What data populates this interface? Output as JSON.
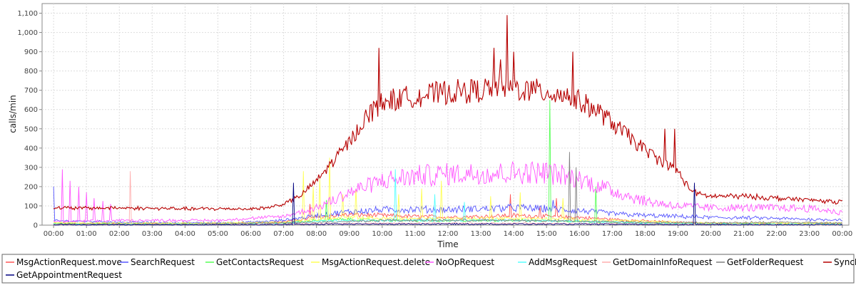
{
  "chart_data": {
    "type": "line",
    "title": "",
    "xlabel": "Time",
    "ylabel": "calls/min",
    "ylim": [
      0,
      1150
    ],
    "xlim_hours": [
      -0.35,
      24.2
    ],
    "grid": true,
    "legend_position": "bottom",
    "y_ticks": [
      "0",
      "100",
      "200",
      "300",
      "400",
      "500",
      "600",
      "700",
      "800",
      "900",
      "1,000",
      "1,100"
    ],
    "x_ticks": [
      "00:00",
      "01:00",
      "02:00",
      "03:00",
      "04:00",
      "05:00",
      "06:00",
      "07:00",
      "08:00",
      "09:00",
      "10:00",
      "11:00",
      "12:00",
      "13:00",
      "14:00",
      "15:00",
      "16:00",
      "17:00",
      "18:00",
      "19:00",
      "20:00",
      "21:00",
      "22:00",
      "23:00",
      "00:00"
    ],
    "series": [
      {
        "name": "MsgActionRequest.move",
        "color": "#ff5555",
        "points": [
          [
            0,
            10
          ],
          [
            2,
            8
          ],
          [
            4,
            8
          ],
          [
            6,
            10
          ],
          [
            7,
            18
          ],
          [
            8,
            40
          ],
          [
            9,
            55
          ],
          [
            10,
            50
          ],
          [
            11,
            45
          ],
          [
            12,
            42
          ],
          [
            13,
            45
          ],
          [
            14,
            50
          ],
          [
            15,
            45
          ],
          [
            16,
            40
          ],
          [
            17,
            30
          ],
          [
            18,
            22
          ],
          [
            19,
            15
          ],
          [
            20,
            10
          ],
          [
            22,
            8
          ],
          [
            24,
            8
          ]
        ],
        "spikes": [
          [
            7.8,
            110
          ],
          [
            13.9,
            160
          ],
          [
            14.8,
            100
          ],
          [
            15.3,
            140
          ]
        ]
      },
      {
        "name": "SearchRequest",
        "color": "#5555ff",
        "points": [
          [
            0,
            22
          ],
          [
            1,
            20
          ],
          [
            2,
            15
          ],
          [
            4,
            12
          ],
          [
            6,
            15
          ],
          [
            7,
            25
          ],
          [
            8,
            50
          ],
          [
            9,
            70
          ],
          [
            10,
            80
          ],
          [
            11,
            82
          ],
          [
            12,
            80
          ],
          [
            13,
            85
          ],
          [
            14,
            90
          ],
          [
            15,
            85
          ],
          [
            16,
            75
          ],
          [
            17,
            60
          ],
          [
            18,
            50
          ],
          [
            19,
            45
          ],
          [
            20,
            40
          ],
          [
            21,
            38
          ],
          [
            22,
            35
          ],
          [
            23,
            30
          ],
          [
            24,
            28
          ]
        ],
        "spikes": [
          [
            0,
            200
          ],
          [
            14.1,
            100
          ],
          [
            15.2,
            130
          ]
        ]
      },
      {
        "name": "GetContactsRequest",
        "color": "#55ff55",
        "points": [
          [
            0,
            8
          ],
          [
            4,
            6
          ],
          [
            7,
            10
          ],
          [
            8,
            25
          ],
          [
            9,
            30
          ],
          [
            10,
            25
          ],
          [
            12,
            22
          ],
          [
            14,
            25
          ],
          [
            16,
            20
          ],
          [
            18,
            12
          ],
          [
            20,
            8
          ],
          [
            24,
            6
          ]
        ],
        "spikes": [
          [
            8.3,
            130
          ],
          [
            15.1,
            650
          ],
          [
            16.5,
            200
          ]
        ]
      },
      {
        "name": "MsgActionRequest.delete",
        "color": "#ffff55",
        "points": [
          [
            0,
            12
          ],
          [
            4,
            10
          ],
          [
            7,
            15
          ],
          [
            8,
            30
          ],
          [
            9,
            40
          ],
          [
            10,
            35
          ],
          [
            12,
            35
          ],
          [
            14,
            35
          ],
          [
            16,
            30
          ],
          [
            18,
            20
          ],
          [
            20,
            12
          ],
          [
            24,
            10
          ]
        ],
        "spikes": [
          [
            7.6,
            280
          ],
          [
            7.9,
            200
          ],
          [
            8.1,
            240
          ],
          [
            8.4,
            350
          ],
          [
            8.8,
            160
          ],
          [
            9.2,
            190
          ],
          [
            10.5,
            160
          ],
          [
            11.2,
            190
          ],
          [
            11.8,
            230
          ],
          [
            13.3,
            150
          ],
          [
            14.2,
            170
          ],
          [
            15.5,
            140
          ]
        ]
      },
      {
        "name": "NoOpRequest",
        "color": "#ff55ff",
        "points": [
          [
            0,
            20
          ],
          [
            1,
            20
          ],
          [
            2,
            25
          ],
          [
            3,
            25
          ],
          [
            4,
            25
          ],
          [
            5,
            25
          ],
          [
            6,
            35
          ],
          [
            7,
            45
          ],
          [
            8,
            90
          ],
          [
            9,
            170
          ],
          [
            10,
            230
          ],
          [
            11,
            255
          ],
          [
            12,
            265
          ],
          [
            13,
            270
          ],
          [
            14,
            272
          ],
          [
            15,
            275
          ],
          [
            16,
            240
          ],
          [
            17,
            180
          ],
          [
            18,
            125
          ],
          [
            19,
            100
          ],
          [
            20,
            90
          ],
          [
            21,
            90
          ],
          [
            22,
            90
          ],
          [
            23,
            88
          ],
          [
            24,
            65
          ]
        ],
        "spikes": [
          [
            0.25,
            290
          ],
          [
            0.5,
            230
          ],
          [
            0.75,
            200
          ],
          [
            1.0,
            170
          ],
          [
            1.25,
            140
          ],
          [
            1.5,
            125
          ],
          [
            1.75,
            110
          ]
        ]
      },
      {
        "name": "AddMsgRequest",
        "color": "#55ffff",
        "points": [
          [
            0,
            5
          ],
          [
            4,
            5
          ],
          [
            7,
            8
          ],
          [
            8,
            20
          ],
          [
            10,
            25
          ],
          [
            12,
            25
          ],
          [
            14,
            25
          ],
          [
            16,
            20
          ],
          [
            18,
            10
          ],
          [
            20,
            6
          ],
          [
            24,
            5
          ]
        ],
        "spikes": [
          [
            10.4,
            290
          ],
          [
            11.6,
            160
          ],
          [
            12.5,
            120
          ]
        ]
      },
      {
        "name": "GetDomainInfoRequest",
        "color": "#ffafaf",
        "points": [
          [
            0,
            3
          ],
          [
            4,
            3
          ],
          [
            8,
            8
          ],
          [
            12,
            10
          ],
          [
            16,
            8
          ],
          [
            20,
            4
          ],
          [
            24,
            3
          ]
        ],
        "spikes": [
          [
            2.35,
            280
          ]
        ]
      },
      {
        "name": "GetFolderRequest",
        "color": "#808080",
        "points": [
          [
            0,
            5
          ],
          [
            4,
            4
          ],
          [
            8,
            15
          ],
          [
            10,
            25
          ],
          [
            12,
            25
          ],
          [
            14,
            25
          ],
          [
            16,
            20
          ],
          [
            18,
            15
          ],
          [
            20,
            12
          ],
          [
            22,
            15
          ],
          [
            24,
            12
          ]
        ],
        "spikes": [
          [
            15.7,
            380
          ],
          [
            15.9,
            300
          ]
        ]
      },
      {
        "name": "SyncRequest",
        "color": "#b60000",
        "points": [
          [
            0,
            90
          ],
          [
            1,
            88
          ],
          [
            2,
            90
          ],
          [
            3,
            87
          ],
          [
            4,
            85
          ],
          [
            5,
            85
          ],
          [
            6,
            85
          ],
          [
            6.5,
            90
          ],
          [
            7,
            110
          ],
          [
            7.5,
            150
          ],
          [
            8,
            230
          ],
          [
            8.5,
            330
          ],
          [
            9,
            430
          ],
          [
            9.5,
            560
          ],
          [
            10,
            640
          ],
          [
            11,
            670
          ],
          [
            12,
            690
          ],
          [
            13,
            700
          ],
          [
            13.5,
            720
          ],
          [
            14,
            710
          ],
          [
            14.5,
            700
          ],
          [
            15,
            690
          ],
          [
            15.5,
            680
          ],
          [
            16,
            640
          ],
          [
            16.5,
            600
          ],
          [
            17,
            530
          ],
          [
            17.5,
            460
          ],
          [
            18,
            390
          ],
          [
            18.5,
            330
          ],
          [
            19,
            280
          ],
          [
            19.3,
            200
          ],
          [
            19.6,
            160
          ],
          [
            20,
            150
          ],
          [
            21,
            150
          ],
          [
            22,
            140
          ],
          [
            23,
            130
          ],
          [
            24,
            120
          ]
        ],
        "spikes": [
          [
            9.9,
            920
          ],
          [
            13.4,
            920
          ],
          [
            13.6,
            860
          ],
          [
            13.8,
            1090
          ],
          [
            14.0,
            900
          ],
          [
            15.8,
            900
          ],
          [
            18.6,
            500
          ],
          [
            18.9,
            500
          ]
        ]
      },
      {
        "name": "GetAppointmentRequest",
        "color": "#000080",
        "points": [
          [
            0,
            2
          ],
          [
            6,
            2
          ],
          [
            8,
            5
          ],
          [
            12,
            6
          ],
          [
            16,
            5
          ],
          [
            20,
            3
          ],
          [
            24,
            2
          ]
        ],
        "spikes": [
          [
            7.3,
            220
          ],
          [
            19.5,
            220
          ]
        ]
      }
    ]
  }
}
